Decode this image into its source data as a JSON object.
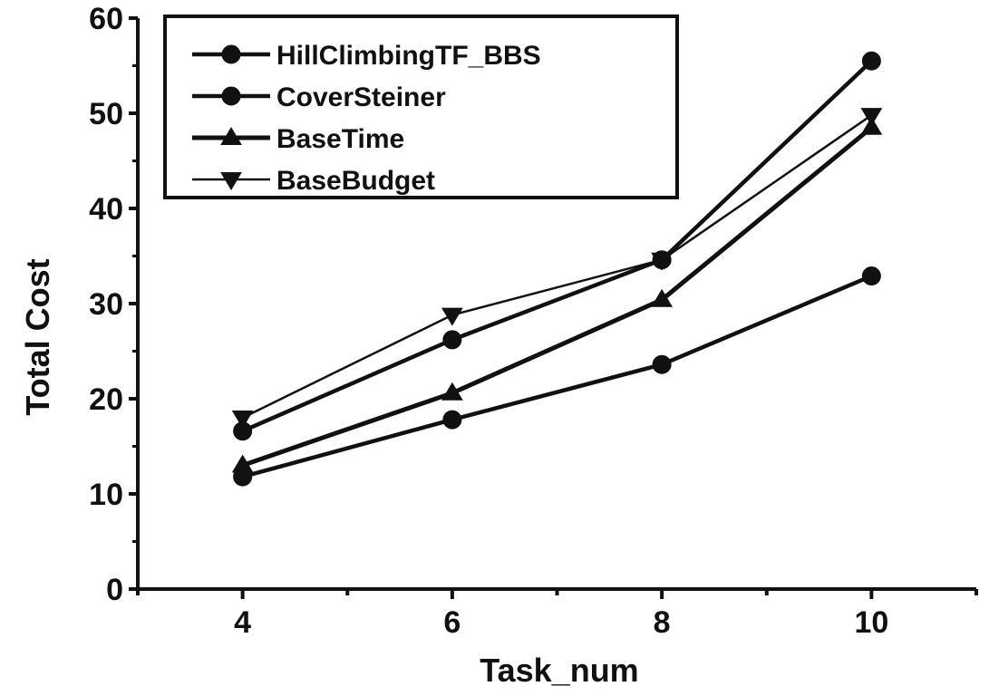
{
  "chart_data": {
    "type": "line",
    "xlabel": "Task_num",
    "ylabel": "Total Cost",
    "x": [
      4,
      6,
      8,
      10
    ],
    "xticks": [
      "4",
      "6",
      "8",
      "10"
    ],
    "yticks": [
      "0",
      "10",
      "20",
      "30",
      "40",
      "50",
      "60"
    ],
    "xlim": [
      3,
      11
    ],
    "ylim": [
      0,
      60
    ],
    "legend_position": "top-left",
    "series": [
      {
        "name": "HillClimbingTF_BBS",
        "marker": "circle",
        "values": [
          11.8,
          17.8,
          23.6,
          32.9
        ]
      },
      {
        "name": "CoverSteiner",
        "marker": "circle",
        "values": [
          16.6,
          26.2,
          34.6,
          55.5
        ]
      },
      {
        "name": "BaseTime",
        "marker": "triangle-up",
        "values": [
          13.0,
          20.6,
          30.4,
          48.5
        ]
      },
      {
        "name": "BaseBudget",
        "marker": "triangle-down",
        "values": [
          18.0,
          28.8,
          34.6,
          49.8
        ]
      }
    ]
  }
}
